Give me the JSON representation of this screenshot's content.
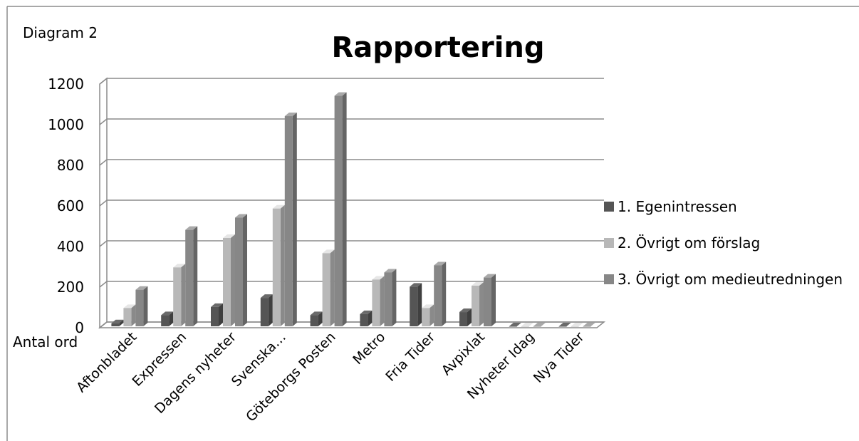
{
  "chart_data": {
    "type": "bar",
    "label": "Diagram 2",
    "title": "Rapportering",
    "ylabel": "Antal ord",
    "xlabel": "",
    "ylim": [
      0,
      1200
    ],
    "yticks": [
      0,
      200,
      400,
      600,
      800,
      1000,
      1200
    ],
    "categories": [
      "Aftonbladet",
      "Expressen",
      "Dagens nyheter",
      "Svenska…",
      "Göteborgs Posten",
      "Metro",
      "Fria Tider",
      "Avpixlat",
      "Nyheter Idag",
      "Nya Tider"
    ],
    "series": [
      {
        "name": "1. Egenintressen",
        "color": "#555555",
        "values": [
          15,
          55,
          95,
          140,
          55,
          60,
          195,
          70,
          0,
          0
        ]
      },
      {
        "name": "2. Övrigt om förslag",
        "color": "#b8b8b8",
        "values": [
          90,
          290,
          435,
          580,
          360,
          230,
          90,
          200,
          0,
          0
        ]
      },
      {
        "name": "3. Övrigt om medieutredningen",
        "color": "#878787",
        "values": [
          180,
          475,
          535,
          1035,
          1135,
          265,
          300,
          240,
          0,
          0
        ]
      }
    ],
    "grid": true,
    "legend": "right",
    "style": "3d-clustered-column"
  }
}
